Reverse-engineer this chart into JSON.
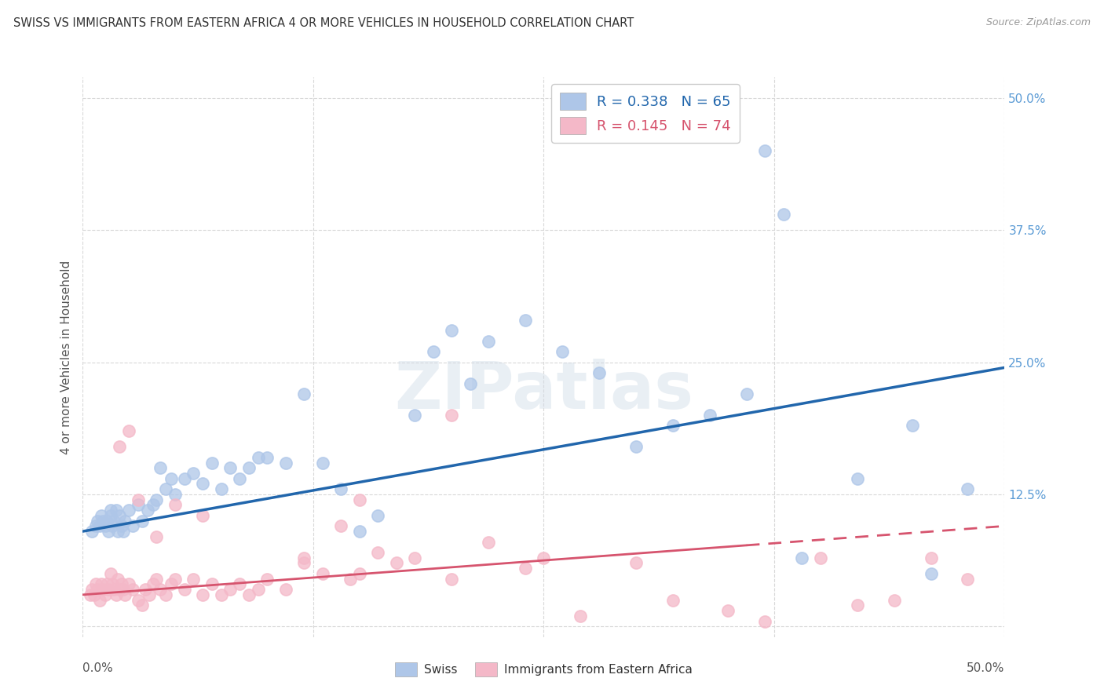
{
  "title": "SWISS VS IMMIGRANTS FROM EASTERN AFRICA 4 OR MORE VEHICLES IN HOUSEHOLD CORRELATION CHART",
  "source": "Source: ZipAtlas.com",
  "ylabel": "4 or more Vehicles in Household",
  "legend_labels": [
    "Swiss",
    "Immigrants from Eastern Africa"
  ],
  "swiss_R": 0.338,
  "swiss_N": 65,
  "imm_R": 0.145,
  "imm_N": 74,
  "xlim": [
    0.0,
    0.5
  ],
  "ylim": [
    -0.01,
    0.52
  ],
  "swiss_color": "#aec6e8",
  "swiss_line_color": "#2166ac",
  "imm_color": "#f4b8c8",
  "imm_line_color": "#d6546e",
  "background_color": "#ffffff",
  "grid_color": "#d8d8d8",
  "swiss_line_start_y": 0.09,
  "swiss_line_end_y": 0.245,
  "imm_line_start_y": 0.03,
  "imm_line_end_y": 0.095,
  "swiss_x": [
    0.005,
    0.007,
    0.008,
    0.009,
    0.01,
    0.011,
    0.012,
    0.013,
    0.014,
    0.015,
    0.015,
    0.016,
    0.017,
    0.018,
    0.019,
    0.02,
    0.021,
    0.022,
    0.023,
    0.025,
    0.027,
    0.03,
    0.032,
    0.035,
    0.038,
    0.04,
    0.042,
    0.045,
    0.048,
    0.05,
    0.055,
    0.06,
    0.065,
    0.07,
    0.075,
    0.08,
    0.085,
    0.09,
    0.095,
    0.1,
    0.11,
    0.12,
    0.13,
    0.14,
    0.15,
    0.16,
    0.18,
    0.19,
    0.2,
    0.21,
    0.22,
    0.24,
    0.26,
    0.28,
    0.3,
    0.32,
    0.34,
    0.36,
    0.37,
    0.38,
    0.39,
    0.42,
    0.45,
    0.46,
    0.48
  ],
  "swiss_y": [
    0.09,
    0.095,
    0.1,
    0.095,
    0.105,
    0.1,
    0.095,
    0.1,
    0.09,
    0.11,
    0.105,
    0.095,
    0.1,
    0.11,
    0.09,
    0.105,
    0.095,
    0.09,
    0.1,
    0.11,
    0.095,
    0.115,
    0.1,
    0.11,
    0.115,
    0.12,
    0.15,
    0.13,
    0.14,
    0.125,
    0.14,
    0.145,
    0.135,
    0.155,
    0.13,
    0.15,
    0.14,
    0.15,
    0.16,
    0.16,
    0.155,
    0.22,
    0.155,
    0.13,
    0.09,
    0.105,
    0.2,
    0.26,
    0.28,
    0.23,
    0.27,
    0.29,
    0.26,
    0.24,
    0.17,
    0.19,
    0.2,
    0.22,
    0.45,
    0.39,
    0.065,
    0.14,
    0.19,
    0.05,
    0.13
  ],
  "imm_x": [
    0.004,
    0.005,
    0.006,
    0.007,
    0.008,
    0.009,
    0.01,
    0.011,
    0.012,
    0.013,
    0.014,
    0.015,
    0.016,
    0.017,
    0.018,
    0.019,
    0.02,
    0.021,
    0.022,
    0.023,
    0.025,
    0.027,
    0.03,
    0.032,
    0.034,
    0.036,
    0.038,
    0.04,
    0.042,
    0.045,
    0.048,
    0.05,
    0.055,
    0.06,
    0.065,
    0.07,
    0.075,
    0.08,
    0.085,
    0.09,
    0.095,
    0.1,
    0.11,
    0.12,
    0.13,
    0.14,
    0.145,
    0.15,
    0.16,
    0.17,
    0.18,
    0.2,
    0.22,
    0.24,
    0.25,
    0.27,
    0.3,
    0.32,
    0.35,
    0.37,
    0.4,
    0.42,
    0.44,
    0.46,
    0.48,
    0.02,
    0.025,
    0.04,
    0.065,
    0.12,
    0.15,
    0.2,
    0.03,
    0.05
  ],
  "imm_y": [
    0.03,
    0.035,
    0.03,
    0.04,
    0.035,
    0.025,
    0.04,
    0.035,
    0.03,
    0.04,
    0.035,
    0.05,
    0.04,
    0.035,
    0.03,
    0.045,
    0.035,
    0.04,
    0.035,
    0.03,
    0.04,
    0.035,
    0.025,
    0.02,
    0.035,
    0.03,
    0.04,
    0.045,
    0.035,
    0.03,
    0.04,
    0.045,
    0.035,
    0.045,
    0.03,
    0.04,
    0.03,
    0.035,
    0.04,
    0.03,
    0.035,
    0.045,
    0.035,
    0.06,
    0.05,
    0.095,
    0.045,
    0.05,
    0.07,
    0.06,
    0.065,
    0.045,
    0.08,
    0.055,
    0.065,
    0.01,
    0.06,
    0.025,
    0.015,
    0.005,
    0.065,
    0.02,
    0.025,
    0.065,
    0.045,
    0.17,
    0.185,
    0.085,
    0.105,
    0.065,
    0.12,
    0.2,
    0.12,
    0.115
  ]
}
